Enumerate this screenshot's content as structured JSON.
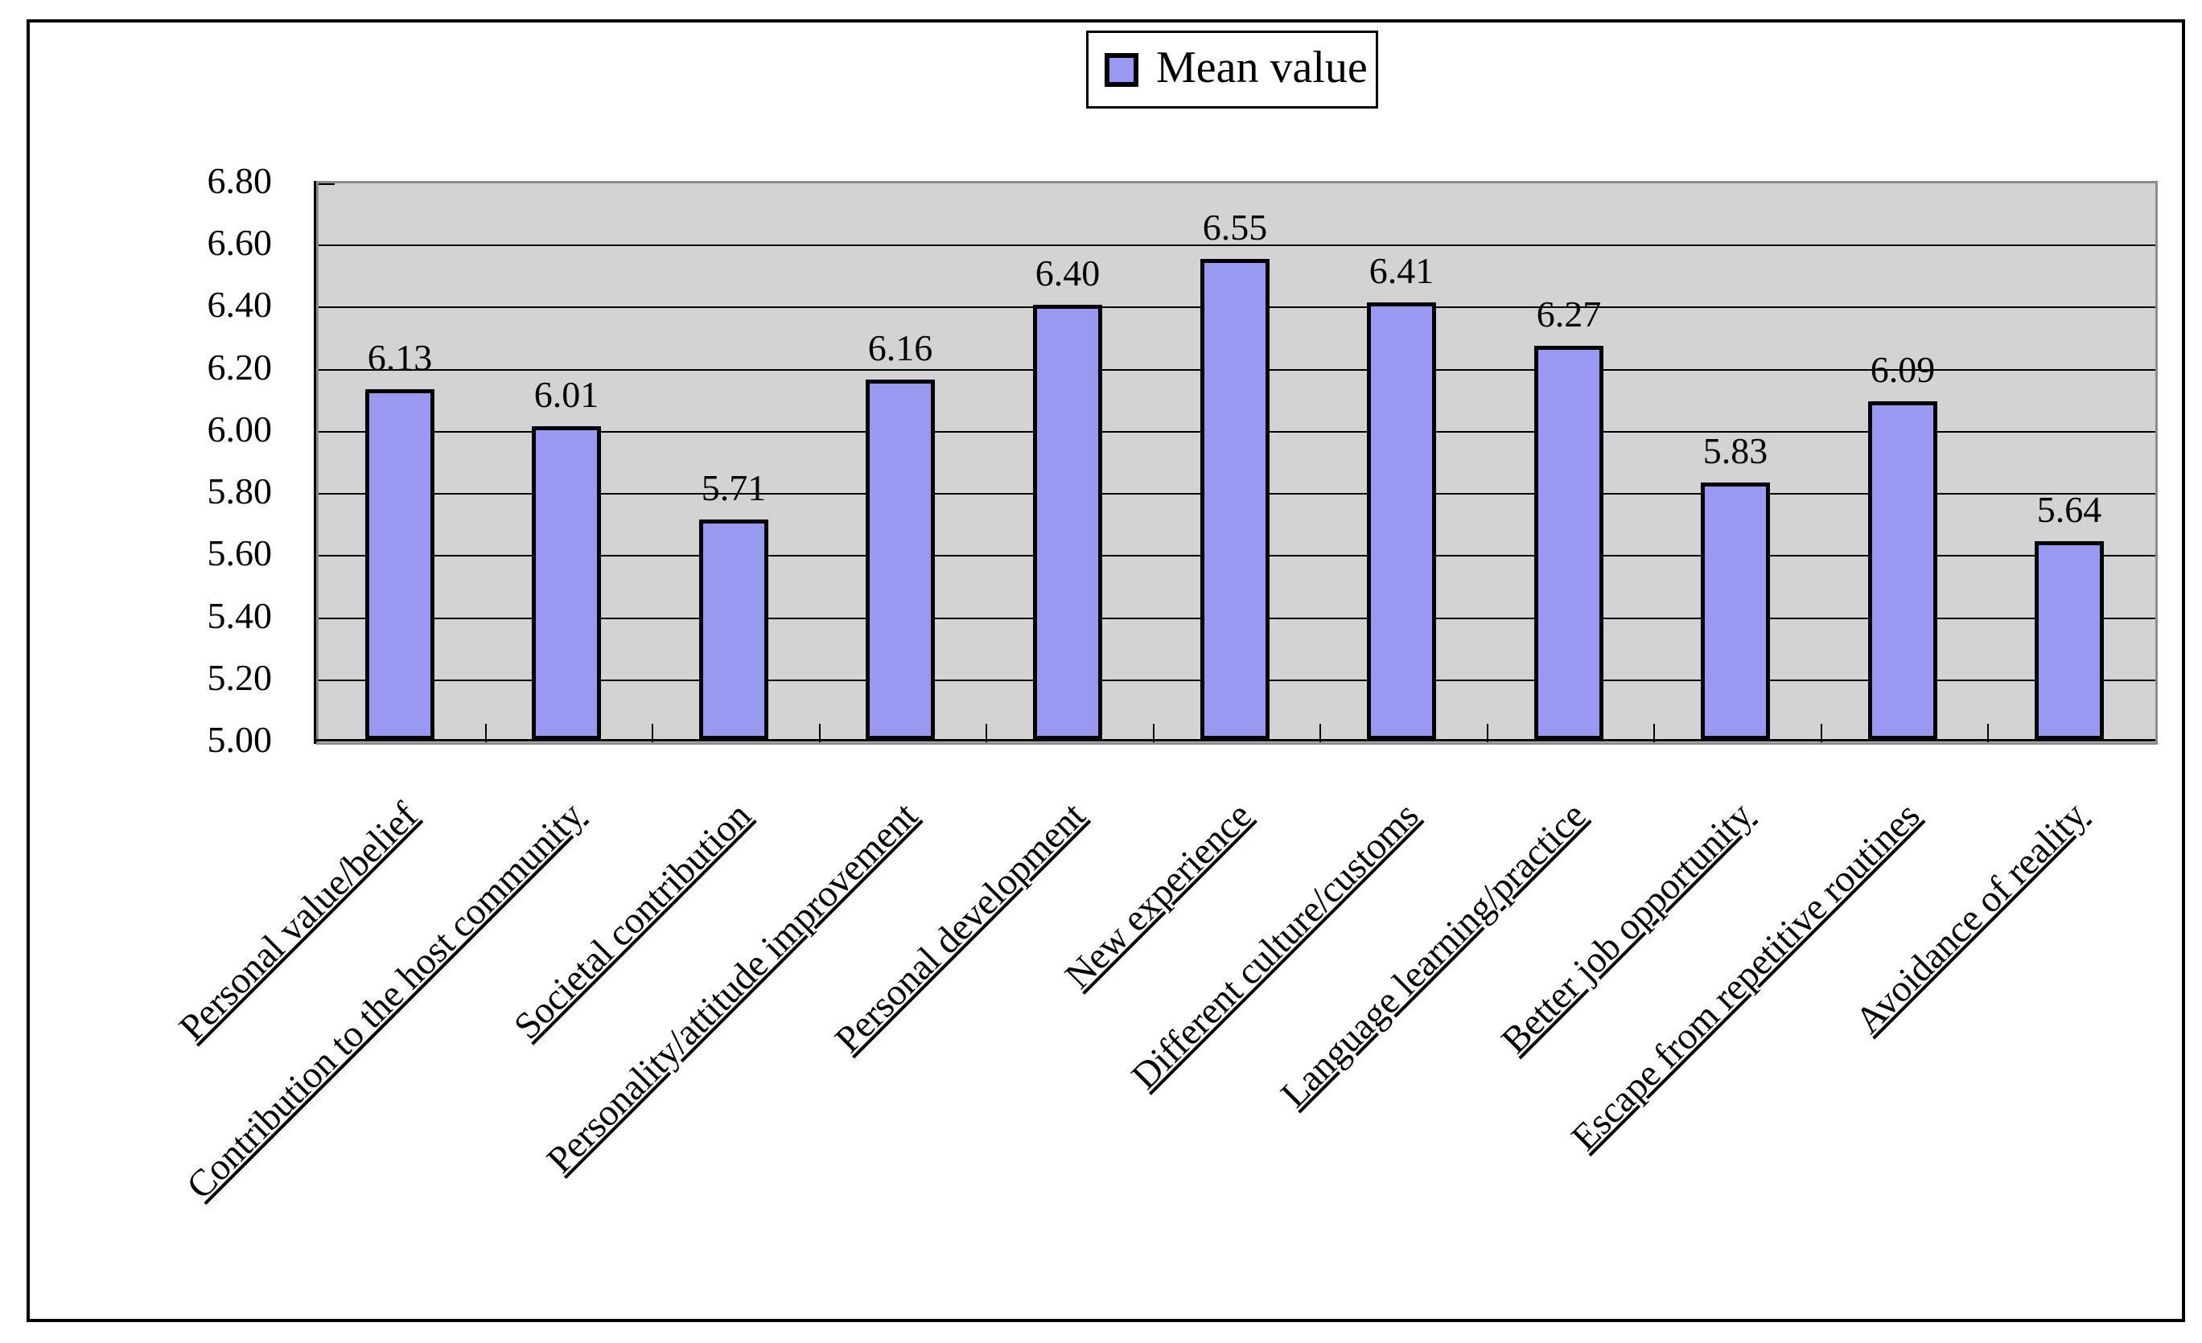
{
  "legend": {
    "label": "Mean value"
  },
  "colors": {
    "bar_fill": "#9a99f1",
    "bar_border": "#000000",
    "plot_bg": "#d3d3d3",
    "plot_border": "#8c8c8c",
    "grid": "#000000",
    "text": "#000000",
    "page_bg": "#ffffff"
  },
  "chart_data": {
    "type": "bar",
    "title": "",
    "xlabel": "",
    "ylabel": "",
    "categories": [
      "Personal value/belief",
      "Contribution to the host community",
      "Societal contribution",
      "Personality/attitude improvement",
      "Personal development",
      "New experience",
      "Different culture/customs",
      "Language learning/practice",
      "Better job opportunity",
      "Escape from repetitive routines",
      "Avoidance of reality"
    ],
    "values": [
      6.13,
      6.01,
      5.71,
      6.16,
      6.4,
      6.55,
      6.41,
      6.27,
      5.83,
      6.09,
      5.64
    ],
    "value_labels": [
      "6.13",
      "6.01",
      "5.71",
      "6.16",
      "6.40",
      "6.55",
      "6.41",
      "6.27",
      "5.83",
      "6.09",
      "5.64"
    ],
    "series": [
      {
        "name": "Mean value",
        "values": [
          6.13,
          6.01,
          5.71,
          6.16,
          6.4,
          6.55,
          6.41,
          6.27,
          5.83,
          6.09,
          5.64
        ]
      }
    ],
    "ylim": [
      5.0,
      6.8
    ],
    "ytick_step": 0.2,
    "ytick_labels": [
      "6.80",
      "6.60",
      "6.40",
      "6.20",
      "6.00",
      "5.80",
      "5.60",
      "5.40",
      "5.20",
      "5.00"
    ],
    "grid": true,
    "legend_position": "top-center",
    "legend_entries": [
      "Mean value"
    ],
    "category_label_rotation_deg": 45,
    "data_labels_shown": true
  }
}
